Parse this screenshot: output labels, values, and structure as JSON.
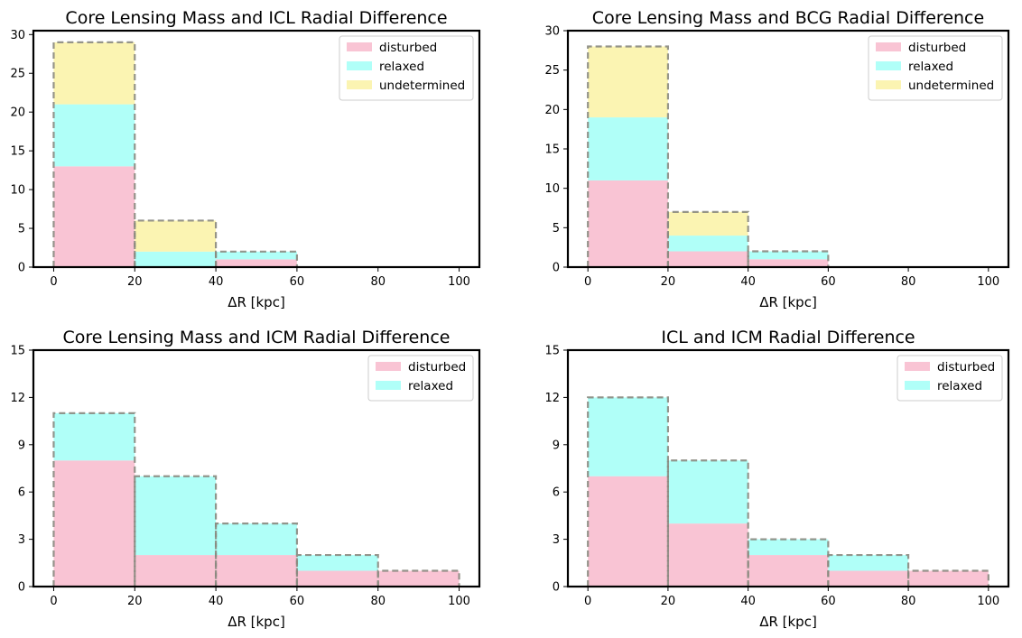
{
  "colors": {
    "disturbed": "#f9c4d4",
    "relaxed": "#b0fff8",
    "undetermined": "#fbf4b2",
    "outline": "#8a8a80"
  },
  "chart_data": [
    {
      "type": "bar",
      "stacked": true,
      "title": "Core Lensing Mass and ICL Radial Difference",
      "xlabel": "ΔR [kpc]",
      "ylabel": "",
      "xlim": [
        -5,
        105
      ],
      "ylim": [
        0,
        30.5
      ],
      "xticks": [
        0,
        20,
        40,
        60,
        80,
        100
      ],
      "yticks": [
        0,
        5,
        10,
        15,
        20,
        25,
        30
      ],
      "bin_edges": [
        0,
        20,
        40,
        60,
        80,
        100
      ],
      "legend": "top-right",
      "series": [
        {
          "name": "disturbed",
          "values": [
            13,
            0,
            1,
            0,
            0
          ]
        },
        {
          "name": "relaxed",
          "values": [
            8,
            2,
            1,
            0,
            0
          ]
        },
        {
          "name": "undetermined",
          "values": [
            8,
            4,
            0,
            0,
            0
          ]
        }
      ],
      "totals": [
        29,
        6,
        2,
        0,
        0
      ]
    },
    {
      "type": "bar",
      "stacked": true,
      "title": "Core Lensing Mass and BCG Radial Difference",
      "xlabel": "ΔR [kpc]",
      "ylabel": "",
      "xlim": [
        -5,
        105
      ],
      "ylim": [
        0,
        30
      ],
      "xticks": [
        0,
        20,
        40,
        60,
        80,
        100
      ],
      "yticks": [
        0,
        5,
        10,
        15,
        20,
        25,
        30
      ],
      "bin_edges": [
        0,
        20,
        40,
        60,
        80,
        100
      ],
      "legend": "top-right",
      "series": [
        {
          "name": "disturbed",
          "values": [
            11,
            2,
            1,
            0,
            0
          ]
        },
        {
          "name": "relaxed",
          "values": [
            8,
            2,
            1,
            0,
            0
          ]
        },
        {
          "name": "undetermined",
          "values": [
            9,
            3,
            0,
            0,
            0
          ]
        }
      ],
      "totals": [
        28,
        7,
        2,
        0,
        0
      ]
    },
    {
      "type": "bar",
      "stacked": true,
      "title": "Core Lensing Mass and ICM Radial Difference",
      "xlabel": "ΔR [kpc]",
      "ylabel": "",
      "xlim": [
        -5,
        105
      ],
      "ylim": [
        0,
        15
      ],
      "xticks": [
        0,
        20,
        40,
        60,
        80,
        100
      ],
      "yticks": [
        0,
        3,
        6,
        9,
        12,
        15
      ],
      "bin_edges": [
        0,
        20,
        40,
        60,
        80,
        100
      ],
      "legend": "top-right",
      "series": [
        {
          "name": "disturbed",
          "values": [
            8,
            2,
            2,
            1,
            1
          ]
        },
        {
          "name": "relaxed",
          "values": [
            3,
            5,
            2,
            1,
            0
          ]
        }
      ],
      "totals": [
        11,
        7,
        4,
        2,
        1
      ]
    },
    {
      "type": "bar",
      "stacked": true,
      "title": "ICL and ICM Radial Difference",
      "xlabel": "ΔR [kpc]",
      "ylabel": "",
      "xlim": [
        -5,
        105
      ],
      "ylim": [
        0,
        15
      ],
      "xticks": [
        0,
        20,
        40,
        60,
        80,
        100
      ],
      "yticks": [
        0,
        3,
        6,
        9,
        12,
        15
      ],
      "bin_edges": [
        0,
        20,
        40,
        60,
        80,
        100
      ],
      "legend": "top-right",
      "series": [
        {
          "name": "disturbed",
          "values": [
            7,
            4,
            2,
            1,
            1
          ]
        },
        {
          "name": "relaxed",
          "values": [
            5,
            4,
            1,
            1,
            0
          ]
        }
      ],
      "totals": [
        12,
        8,
        3,
        2,
        1
      ]
    }
  ]
}
